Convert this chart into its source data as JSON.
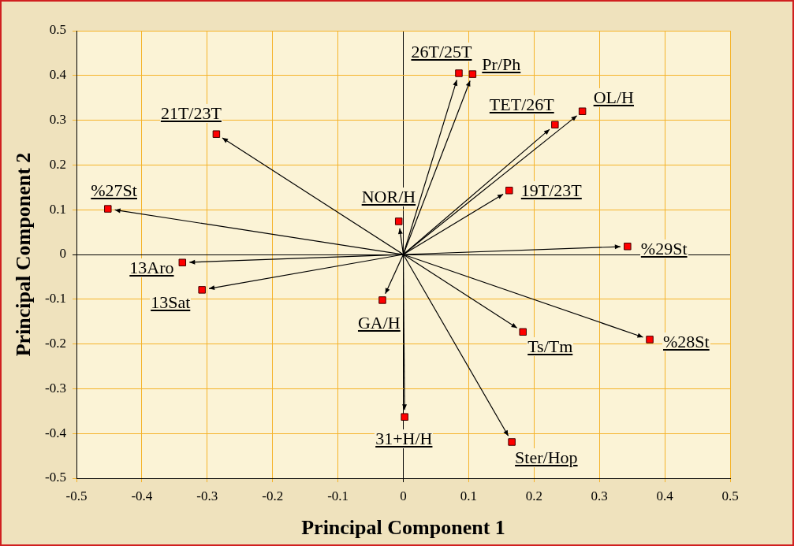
{
  "chart_data": {
    "type": "scatter",
    "xlabel": "Principal Component 1",
    "ylabel": "Principal Component 2",
    "x": [
      0.085,
      0.106,
      0.232,
      0.274,
      -0.286,
      0.162,
      -0.452,
      -0.007,
      0.343,
      -0.338,
      -0.308,
      -0.032,
      0.183,
      0.377,
      0.002,
      0.166
    ],
    "series": [
      {
        "color": "#ff0000",
        "values": [
          0.405,
          0.403,
          0.29,
          0.32,
          0.269,
          0.143,
          0.102,
          0.074,
          0.018,
          -0.018,
          -0.079,
          -0.102,
          -0.173,
          -0.19,
          -0.363,
          -0.419
        ]
      }
    ],
    "annotations": [
      {
        "text": "26T/25T",
        "x": 0.085,
        "y": 0.405
      },
      {
        "text": "Pr/Ph",
        "x": 0.106,
        "y": 0.403
      },
      {
        "text": "TET/26T",
        "x": 0.232,
        "y": 0.29
      },
      {
        "text": "OL/H",
        "x": 0.274,
        "y": 0.32
      },
      {
        "text": "21T/23T",
        "x": -0.286,
        "y": 0.269
      },
      {
        "text": "19T/23T",
        "x": 0.162,
        "y": 0.143
      },
      {
        "text": "%27St",
        "x": -0.452,
        "y": 0.102
      },
      {
        "text": "NOR/H",
        "x": -0.007,
        "y": 0.074
      },
      {
        "text": "%29St",
        "x": 0.343,
        "y": 0.018
      },
      {
        "text": "13Aro",
        "x": -0.338,
        "y": -0.018
      },
      {
        "text": "13Sat",
        "x": -0.308,
        "y": -0.079
      },
      {
        "text": "GA/H",
        "x": -0.032,
        "y": -0.102
      },
      {
        "text": "Ts/Tm",
        "x": 0.183,
        "y": -0.173
      },
      {
        "text": "%28St",
        "x": 0.377,
        "y": -0.19
      },
      {
        "text": "31+H/H",
        "x": 0.002,
        "y": -0.363
      },
      {
        "text": "Ster/Hop",
        "x": 0.166,
        "y": -0.419
      }
    ],
    "xlim": [
      -0.5,
      0.5
    ],
    "xticks": [
      -0.5,
      -0.4,
      -0.3,
      -0.2,
      -0.1,
      0,
      0.1,
      0.2,
      0.3,
      0.4,
      0.5
    ],
    "ylim": [
      -0.5,
      0.5
    ],
    "yticks": [
      -0.5,
      -0.4,
      -0.3,
      -0.2,
      -0.1,
      0,
      0.1,
      0.2,
      0.3,
      0.4,
      0.5
    ],
    "grid": true,
    "legend": false,
    "marker": "square"
  }
}
